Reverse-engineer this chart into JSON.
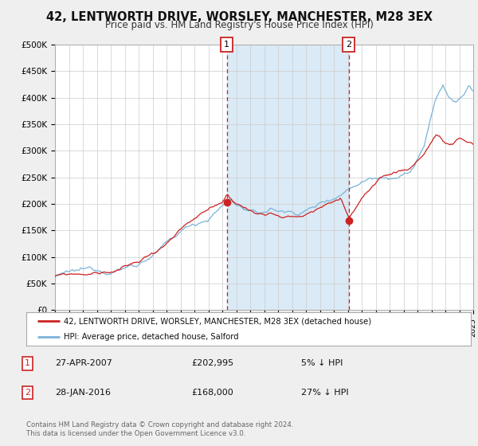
{
  "title": "42, LENTWORTH DRIVE, WORSLEY, MANCHESTER, M28 3EX",
  "subtitle": "Price paid vs. HM Land Registry's House Price Index (HPI)",
  "title_fontsize": 10.5,
  "subtitle_fontsize": 8.5,
  "hpi_color": "#7ab4d8",
  "price_color": "#cc2222",
  "background_color": "#efefef",
  "plot_bg_color": "#ffffff",
  "grid_color": "#cccccc",
  "sale1_date": 2007.32,
  "sale1_price": 202995,
  "sale2_date": 2016.08,
  "sale2_price": 168000,
  "shaded_region_color": "#daeaf6",
  "legend_label_price": "42, LENTWORTH DRIVE, WORSLEY, MANCHESTER, M28 3EX (detached house)",
  "legend_label_hpi": "HPI: Average price, detached house, Salford",
  "footer": "Contains HM Land Registry data © Crown copyright and database right 2024.\nThis data is licensed under the Open Government Licence v3.0.",
  "xmin": 1995,
  "xmax": 2025,
  "ylim": [
    0,
    500000
  ],
  "yticks": [
    0,
    50000,
    100000,
    150000,
    200000,
    250000,
    300000,
    350000,
    400000,
    450000,
    500000
  ],
  "ytick_labels": [
    "£0",
    "£50K",
    "£100K",
    "£150K",
    "£200K",
    "£250K",
    "£300K",
    "£350K",
    "£400K",
    "£450K",
    "£500K"
  ]
}
